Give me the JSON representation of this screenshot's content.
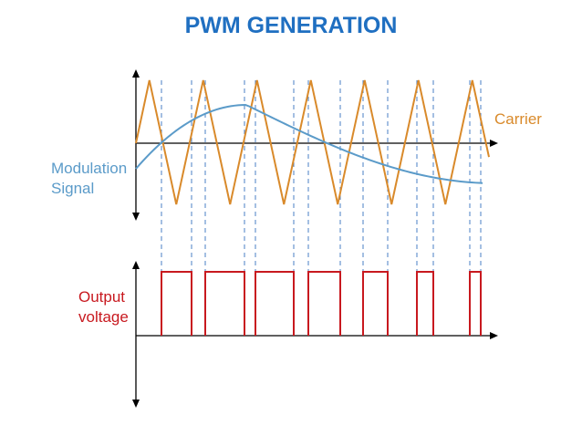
{
  "title": "PWM GENERATION",
  "labels": {
    "carrier": "Carrier",
    "modulation_line1": "Modulation",
    "modulation_line2": "Signal",
    "output_line1": "Output",
    "output_line2": "voltage"
  },
  "colors": {
    "title": "#1f6fc1",
    "carrier": "#d98a2b",
    "modulation": "#5b9bc9",
    "output": "#c8191f",
    "axis": "#000000",
    "guide": "#4a7fc4"
  }
}
